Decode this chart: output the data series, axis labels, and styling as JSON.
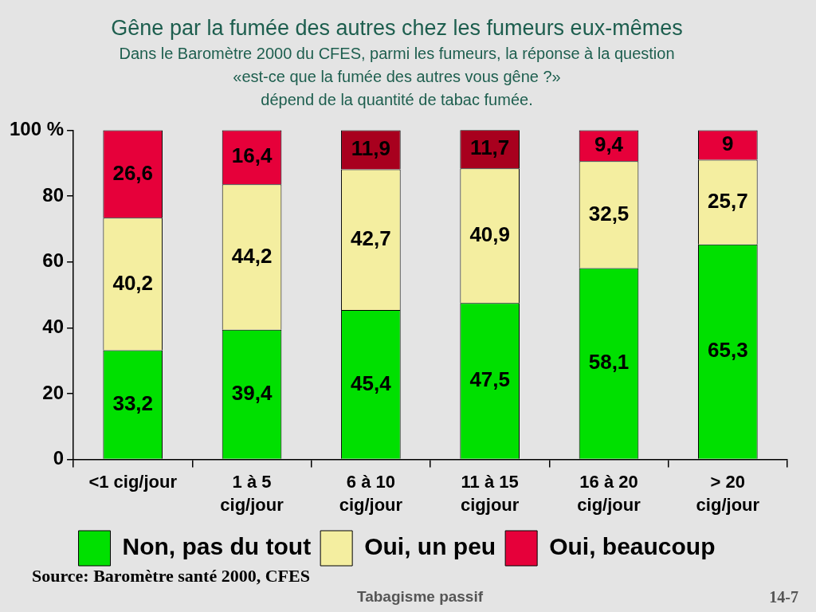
{
  "chart_data": {
    "type": "bar",
    "title": "Gêne par la fumée des autres chez les fumeurs eux-mêmes",
    "subtitle": "Dans le Baromètre 2000 du CFES, parmi les fumeurs, la réponse à la question\n«est-ce que la fumée des autres vous gêne ?»\ndépend de la quantité de tabac fumée.",
    "categories": [
      "<1 cig/jour",
      "1 à 5\ncig/jour",
      "6 à 10\ncig/jour",
      "11 à 15\ncigjour",
      "16 à 20\ncig/jour",
      "> 20\ncig/jour"
    ],
    "stacked": true,
    "series": [
      {
        "name": "Non, pas du tout",
        "color": "#00e000",
        "values": [
          33.2,
          39.4,
          45.4,
          47.5,
          58.1,
          65.3
        ],
        "value_labels": [
          "33,2",
          "39,4",
          "45,4",
          "47,5",
          "58,1",
          "65,3"
        ]
      },
      {
        "name": "Oui, un peu",
        "color": "#f4eea0",
        "values": [
          40.2,
          44.2,
          42.7,
          40.9,
          32.5,
          25.7
        ],
        "value_labels": [
          "40,2",
          "44,2",
          "42,7",
          "40,9",
          "32,5",
          "25,7"
        ]
      },
      {
        "name": "Oui, beaucoup",
        "color": "#e6003a",
        "colors": [
          null,
          null,
          "#a8001e",
          "#a8001e",
          null,
          null
        ],
        "values": [
          26.6,
          16.4,
          11.9,
          11.7,
          9.4,
          9
        ],
        "value_labels": [
          "26,6",
          "16,4",
          "11,9",
          "11,7",
          "9,4",
          "9"
        ]
      }
    ],
    "ylim": [
      0,
      100
    ],
    "yticks": [
      0,
      20,
      40,
      60,
      80,
      {
        "value": 100,
        "label": "100 %"
      }
    ],
    "legend": "bottom",
    "annotations": [
      "Source: Baromètre santé 2000, CFES",
      "Tabagisme passif",
      "14-7"
    ]
  }
}
